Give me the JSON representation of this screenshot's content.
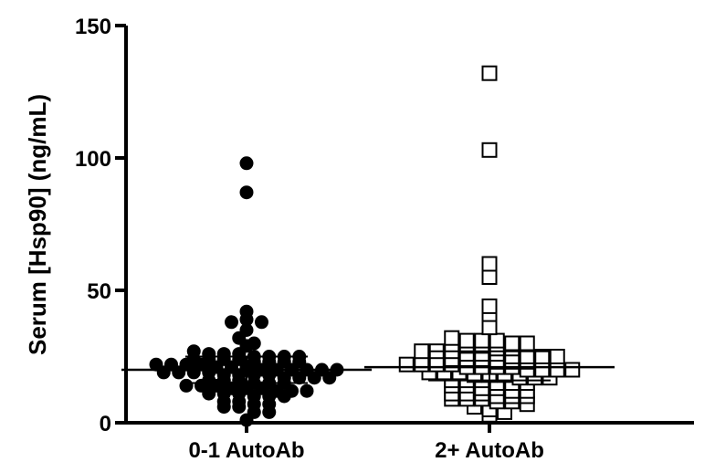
{
  "chart_data": {
    "type": "scatter",
    "title": "",
    "xlabel": "",
    "ylabel": "Serum [Hsp90] (ng/mL)",
    "ylim": [
      0,
      150
    ],
    "yticks": [
      0,
      50,
      100,
      150
    ],
    "grid": false,
    "legend": "none",
    "categories": [
      "0-1 AutoAb",
      "2+ AutoAb"
    ],
    "series": [
      {
        "category": "0-1 AutoAb",
        "marker": "filled-circle",
        "color": "#000000",
        "mean": 20,
        "error": [
          15,
          25
        ],
        "values": [
          98,
          87,
          42,
          38,
          39,
          38,
          35,
          32,
          30,
          29,
          27,
          26,
          26,
          26,
          25,
          25,
          25,
          25,
          24,
          24,
          24,
          24,
          23,
          23,
          23,
          23,
          22,
          22,
          22,
          22,
          21,
          21,
          21,
          20,
          20,
          20,
          20,
          20,
          20,
          19,
          19,
          19,
          19,
          18,
          18,
          18,
          18,
          17,
          17,
          17,
          17,
          16,
          16,
          16,
          15,
          15,
          15,
          14,
          14,
          14,
          13,
          13,
          13,
          12,
          12,
          12,
          11,
          11,
          11,
          10,
          10,
          10,
          8,
          8,
          7,
          7,
          6,
          6,
          4,
          4,
          1
        ]
      },
      {
        "category": "2+ AutoAb",
        "marker": "open-square",
        "color": "#000000",
        "mean": 21,
        "error": [
          16,
          27
        ],
        "values": [
          132,
          103,
          60,
          55,
          44,
          41,
          36,
          32,
          31,
          31,
          31,
          30,
          30,
          29,
          29,
          28,
          28,
          27,
          27,
          27,
          26,
          26,
          26,
          25,
          25,
          25,
          25,
          24,
          24,
          24,
          23,
          23,
          23,
          22,
          22,
          22,
          22,
          21,
          21,
          21,
          21,
          20,
          20,
          20,
          20,
          19,
          19,
          19,
          18,
          18,
          18,
          17,
          17,
          17,
          16,
          16,
          16,
          15,
          15,
          15,
          14,
          14,
          13,
          13,
          12,
          12,
          11,
          11,
          11,
          10,
          10,
          10,
          9,
          9,
          9,
          8,
          8,
          7,
          6,
          5,
          4,
          3
        ]
      }
    ]
  }
}
